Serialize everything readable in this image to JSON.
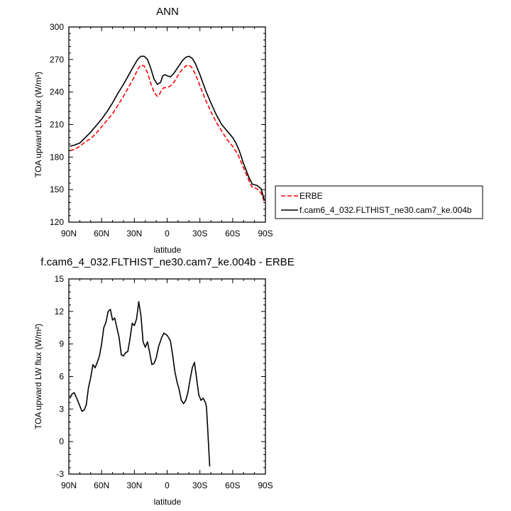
{
  "chart_data": [
    {
      "type": "line",
      "title": "ANN",
      "xlabel": "latitude",
      "ylabel": "TOA upward LW flux (W/m²)",
      "xlim": [
        90,
        -90
      ],
      "ylim": [
        120,
        300
      ],
      "x_tick_values": [
        90,
        60,
        30,
        0,
        -30,
        -60,
        -90
      ],
      "x_tick_labels": [
        "90N",
        "60N",
        "30N",
        "0",
        "30S",
        "60S",
        "90S"
      ],
      "y_ticks": [
        120,
        150,
        180,
        210,
        240,
        270,
        300
      ],
      "legend_position": "right, outside plot",
      "series": [
        {
          "name": "ERBE",
          "color": "#ff0000",
          "dash": "dashed",
          "points": [
            [
              89,
              186
            ],
            [
              85,
              187
            ],
            [
              80,
              190
            ],
            [
              75,
              194
            ],
            [
              70,
              197
            ],
            [
              65,
              202
            ],
            [
              60,
              208
            ],
            [
              55,
              214
            ],
            [
              50,
              220
            ],
            [
              45,
              228
            ],
            [
              40,
              236
            ],
            [
              35,
              245
            ],
            [
              30,
              254
            ],
            [
              27,
              261
            ],
            [
              24,
              265
            ],
            [
              21,
              264
            ],
            [
              18,
              258
            ],
            [
              15,
              248
            ],
            [
              12,
              240
            ],
            [
              9,
              236
            ],
            [
              7,
              238
            ],
            [
              5,
              242
            ],
            [
              3,
              244
            ],
            [
              1,
              244
            ],
            [
              -2,
              245
            ],
            [
              -5,
              247
            ],
            [
              -8,
              252
            ],
            [
              -11,
              257
            ],
            [
              -14,
              261
            ],
            [
              -17,
              264
            ],
            [
              -20,
              265
            ],
            [
              -23,
              262
            ],
            [
              -26,
              256
            ],
            [
              -30,
              246
            ],
            [
              -35,
              233
            ],
            [
              -40,
              222
            ],
            [
              -45,
              212
            ],
            [
              -50,
              204
            ],
            [
              -55,
              196
            ],
            [
              -60,
              190
            ],
            [
              -65,
              182
            ],
            [
              -70,
              170
            ],
            [
              -75,
              158
            ],
            [
              -78,
              152
            ],
            [
              -82,
              151
            ],
            [
              -86,
              147
            ],
            [
              -89,
              139
            ]
          ]
        },
        {
          "name": "f.cam6_4_032.FLTHIST_ne30.cam7_ke.004b",
          "color": "#000000",
          "dash": "solid",
          "points": [
            [
              89,
              190
            ],
            [
              85,
              191
            ],
            [
              80,
              193
            ],
            [
              75,
              198
            ],
            [
              70,
              203
            ],
            [
              65,
              209
            ],
            [
              60,
              215
            ],
            [
              55,
              222
            ],
            [
              50,
              230
            ],
            [
              45,
              239
            ],
            [
              40,
              247
            ],
            [
              35,
              256
            ],
            [
              30,
              265
            ],
            [
              27,
              270
            ],
            [
              24,
              273
            ],
            [
              21,
              273
            ],
            [
              18,
              270
            ],
            [
              15,
              262
            ],
            [
              12,
              252
            ],
            [
              9,
              247
            ],
            [
              6,
              249
            ],
            [
              4,
              255
            ],
            [
              2,
              256
            ],
            [
              0,
              255
            ],
            [
              -3,
              254
            ],
            [
              -6,
              257
            ],
            [
              -10,
              263
            ],
            [
              -14,
              269
            ],
            [
              -17,
              272
            ],
            [
              -20,
              273
            ],
            [
              -23,
              271
            ],
            [
              -26,
              266
            ],
            [
              -30,
              256
            ],
            [
              -35,
              242
            ],
            [
              -40,
              230
            ],
            [
              -45,
              219
            ],
            [
              -50,
              210
            ],
            [
              -55,
              204
            ],
            [
              -60,
              198
            ],
            [
              -63,
              193
            ],
            [
              -66,
              186
            ],
            [
              -70,
              174
            ],
            [
              -75,
              161
            ],
            [
              -78,
              155
            ],
            [
              -82,
              154
            ],
            [
              -86,
              151
            ],
            [
              -89,
              140
            ]
          ]
        }
      ]
    },
    {
      "type": "line",
      "title": "f.cam6_4_032.FLTHIST_ne30.cam7_ke.004b - ERBE",
      "xlabel": "latitude",
      "ylabel": "TOA upward LW flux (W/m²)",
      "xlim": [
        90,
        -90
      ],
      "ylim": [
        -3,
        15
      ],
      "x_tick_values": [
        90,
        60,
        30,
        0,
        -30,
        -60,
        -90
      ],
      "x_tick_labels": [
        "90N",
        "60N",
        "30N",
        "0",
        "30S",
        "60S",
        "90S"
      ],
      "y_ticks": [
        -3,
        0,
        3,
        6,
        9,
        12,
        15
      ],
      "series": [
        {
          "name": "",
          "color": "#000000",
          "dash": "solid",
          "points": [
            [
              89,
              4.0
            ],
            [
              87,
              4.4
            ],
            [
              85,
              4.5
            ],
            [
              82,
              3.8
            ],
            [
              80,
              3.3
            ],
            [
              78,
              2.8
            ],
            [
              76,
              2.9
            ],
            [
              74,
              3.4
            ],
            [
              72,
              5.0
            ],
            [
              70,
              5.9
            ],
            [
              68,
              7.1
            ],
            [
              66,
              6.8
            ],
            [
              64,
              7.3
            ],
            [
              62,
              7.9
            ],
            [
              60,
              9.0
            ],
            [
              58,
              10.5
            ],
            [
              56,
              11.0
            ],
            [
              54,
              12.0
            ],
            [
              52,
              12.2
            ],
            [
              50,
              11.2
            ],
            [
              48,
              11.4
            ],
            [
              46,
              10.5
            ],
            [
              44,
              9.6
            ],
            [
              42,
              8.0
            ],
            [
              40,
              7.9
            ],
            [
              38,
              8.2
            ],
            [
              36,
              8.3
            ],
            [
              34,
              9.5
            ],
            [
              32,
              10.9
            ],
            [
              30,
              10.7
            ],
            [
              28,
              11.3
            ],
            [
              26,
              12.9
            ],
            [
              24,
              11.6
            ],
            [
              22,
              9.2
            ],
            [
              20,
              8.7
            ],
            [
              18,
              9.2
            ],
            [
              16,
              8.2
            ],
            [
              14,
              7.1
            ],
            [
              12,
              7.2
            ],
            [
              10,
              7.7
            ],
            [
              8,
              8.7
            ],
            [
              5,
              9.6
            ],
            [
              3,
              10.0
            ],
            [
              0,
              9.8
            ],
            [
              -3,
              9.3
            ],
            [
              -5,
              8.0
            ],
            [
              -7,
              6.5
            ],
            [
              -9,
              5.5
            ],
            [
              -11,
              4.8
            ],
            [
              -13,
              3.8
            ],
            [
              -15,
              3.5
            ],
            [
              -17,
              3.8
            ],
            [
              -19,
              4.5
            ],
            [
              -21,
              5.7
            ],
            [
              -23,
              6.8
            ],
            [
              -25,
              7.3
            ],
            [
              -27,
              5.8
            ],
            [
              -29,
              4.3
            ],
            [
              -31,
              3.8
            ],
            [
              -33,
              4.0
            ],
            [
              -35,
              3.6
            ],
            [
              -36,
              3.2
            ],
            [
              -37,
              1.5
            ],
            [
              -38,
              -0.5
            ],
            [
              -39,
              -2.3
            ]
          ]
        }
      ]
    }
  ]
}
